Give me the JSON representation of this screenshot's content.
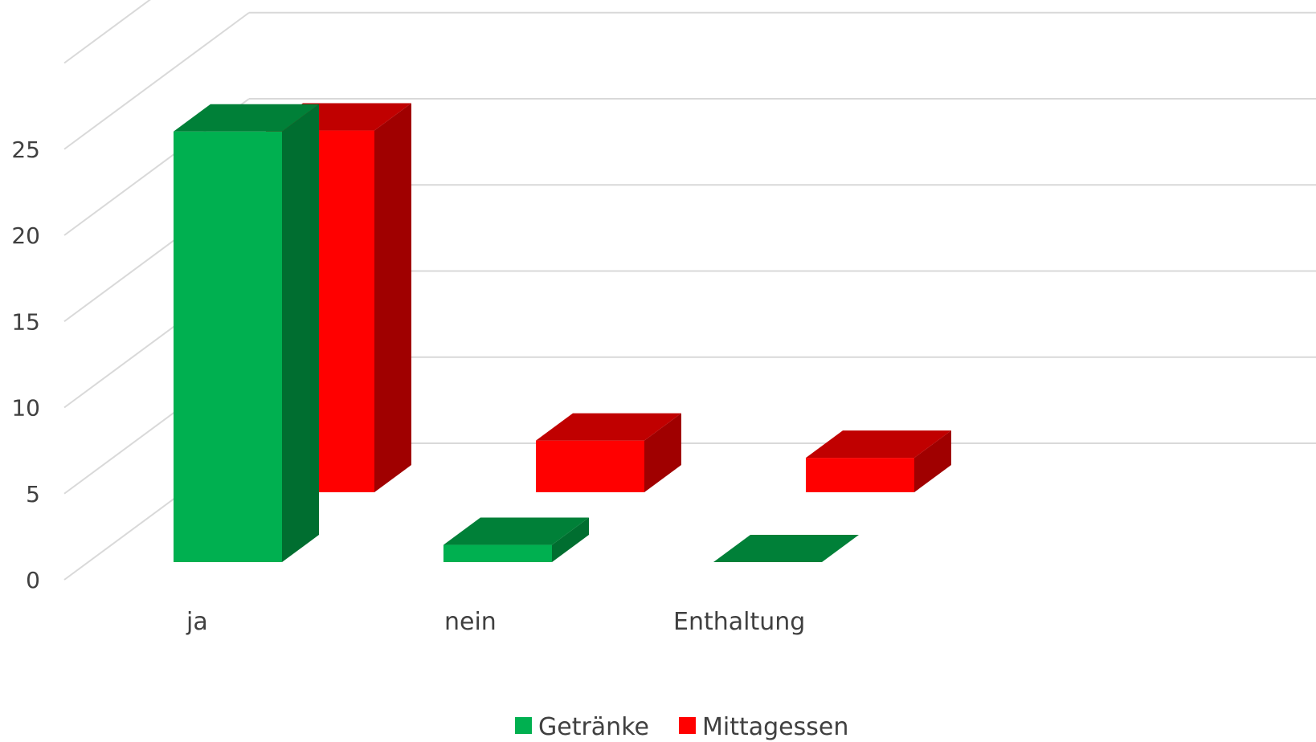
{
  "chart_data": {
    "type": "bar",
    "variant": "3d-clustered-column",
    "categories": [
      "ja",
      "nein",
      "Enthaltung"
    ],
    "series": [
      {
        "name": "Getränke",
        "values": [
          25,
          1,
          0
        ]
      },
      {
        "name": "Mittagessen",
        "values": [
          21,
          3,
          2
        ]
      }
    ],
    "y_ticks": [
      "0",
      "5",
      "10",
      "15",
      "20",
      "25"
    ],
    "ylim": [
      0,
      25
    ],
    "grid": true,
    "legend": "bottom-center",
    "colors": {
      "Getränke": {
        "front": "#00b050",
        "top": "#008038",
        "side": "#006e30"
      },
      "Mittagessen": {
        "front": "#ff0000",
        "top": "#c00000",
        "side": "#a00000"
      },
      "grid": "#d9d9d9",
      "text": "#404040"
    }
  }
}
